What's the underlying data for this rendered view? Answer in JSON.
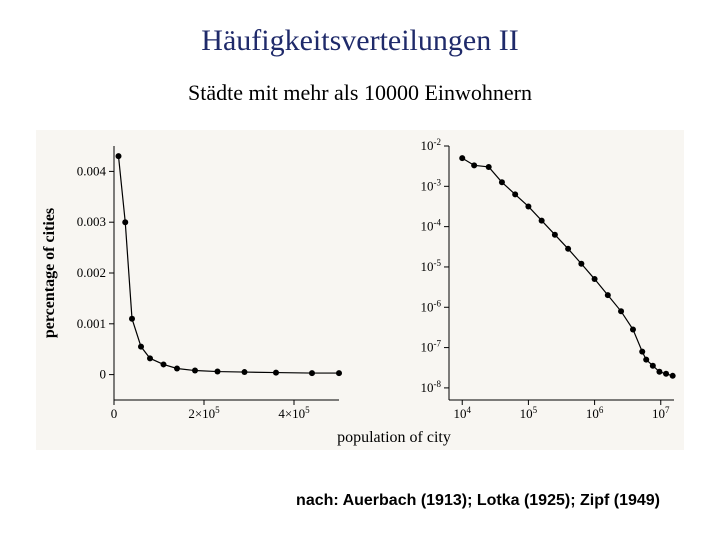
{
  "title": "Häufigkeitsverteilungen II",
  "subtitle": "Städte mit mehr als 10000 Einwohnern",
  "caption": "nach: Auerbach (1913); Lotka (1925); Zipf (1949)",
  "figure": {
    "background_color": "#f8f6f2",
    "axis_color": "#000000",
    "line_color": "#000000",
    "marker_color": "#000000",
    "grid_color": "#e0e0e0",
    "text_color": "#000000",
    "axis_fontfamily": "Times New Roman, serif",
    "axis_fontsize": 13,
    "xlabel": "population of city",
    "ylabel": "percentage of cities",
    "label_fontsize": 16,
    "line_width": 1.2,
    "marker_radius": 3,
    "left_panel": {
      "type": "line",
      "xlim": [
        0,
        500000
      ],
      "xticks": [
        0,
        200000,
        400000
      ],
      "xtick_labels": [
        "0",
        "2×10^5",
        "4×10^5"
      ],
      "ylim": [
        -0.0005,
        0.0045
      ],
      "yticks": [
        0,
        0.001,
        0.002,
        0.003,
        0.004
      ],
      "ytick_labels": [
        "0",
        "0.001",
        "0.002",
        "0.003",
        "0.004"
      ],
      "points": [
        {
          "x": 10000,
          "y": 0.0043
        },
        {
          "x": 25000,
          "y": 0.003
        },
        {
          "x": 40000,
          "y": 0.0011
        },
        {
          "x": 60000,
          "y": 0.00055
        },
        {
          "x": 80000,
          "y": 0.00032
        },
        {
          "x": 110000,
          "y": 0.0002
        },
        {
          "x": 140000,
          "y": 0.00012
        },
        {
          "x": 180000,
          "y": 8e-05
        },
        {
          "x": 230000,
          "y": 6e-05
        },
        {
          "x": 290000,
          "y": 5e-05
        },
        {
          "x": 360000,
          "y": 4e-05
        },
        {
          "x": 440000,
          "y": 3e-05
        },
        {
          "x": 500000,
          "y": 3e-05
        }
      ]
    },
    "right_panel": {
      "type": "line",
      "xscale": "log",
      "yscale": "log",
      "xlim_exp": [
        3.8,
        7.2
      ],
      "xticks_exp": [
        4,
        5,
        6,
        7
      ],
      "xtick_labels": [
        "10^4",
        "10^5",
        "10^6",
        "10^7"
      ],
      "ylim_exp": [
        -8.3,
        -2
      ],
      "yticks_exp": [
        -2,
        -3,
        -4,
        -5,
        -6,
        -7,
        -8
      ],
      "ytick_labels": [
        "10^-2",
        "10^-3",
        "10^-4",
        "10^-5",
        "10^-6",
        "10^-7",
        "10^-8"
      ],
      "points": [
        {
          "lx": 4.0,
          "ly": -2.3
        },
        {
          "lx": 4.18,
          "ly": -2.48
        },
        {
          "lx": 4.4,
          "ly": -2.52
        },
        {
          "lx": 4.6,
          "ly": -2.9
        },
        {
          "lx": 4.8,
          "ly": -3.2
        },
        {
          "lx": 5.0,
          "ly": -3.5
        },
        {
          "lx": 5.2,
          "ly": -3.85
        },
        {
          "lx": 5.4,
          "ly": -4.2
        },
        {
          "lx": 5.6,
          "ly": -4.55
        },
        {
          "lx": 5.8,
          "ly": -4.92
        },
        {
          "lx": 6.0,
          "ly": -5.3
        },
        {
          "lx": 6.2,
          "ly": -5.7
        },
        {
          "lx": 6.4,
          "ly": -6.1
        },
        {
          "lx": 6.58,
          "ly": -6.55
        },
        {
          "lx": 6.72,
          "ly": -7.1
        },
        {
          "lx": 6.78,
          "ly": -7.3
        },
        {
          "lx": 6.88,
          "ly": -7.45
        },
        {
          "lx": 6.98,
          "ly": -7.6
        },
        {
          "lx": 7.08,
          "ly": -7.65
        },
        {
          "lx": 7.18,
          "ly": -7.7
        }
      ]
    }
  }
}
